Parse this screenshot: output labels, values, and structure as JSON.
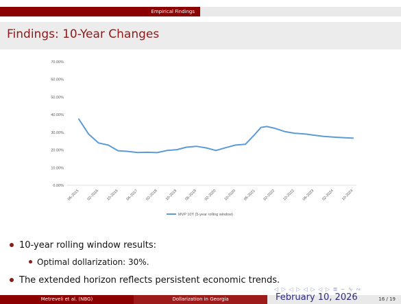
{
  "header": {
    "section": "Empirical Findings"
  },
  "frame": {
    "title": "Findings: 10-Year Changes"
  },
  "bullets": {
    "item1": "10-year rolling window results:",
    "item1_sub": "Optimal dollarization:  30%.",
    "item2": "The extended horizon reflects persistent economic trends."
  },
  "footer": {
    "author": "Metreveli et al. (NBG)",
    "short_title": "Dollarization in Georgia",
    "date": "February 10, 2026",
    "page": "16 / 19"
  },
  "nav_symbols": "◁ ▷ ◁ ▷ ◁ ▷ ◁ ▷ ≣ ∽ ∿ ∾",
  "colors": {
    "header_red": "#8b0000",
    "title_red": "#8b1a1a",
    "line_blue": "#5b9bd5"
  },
  "chart_data": {
    "type": "line",
    "ylim": [
      0,
      70
    ],
    "yticks": [
      0,
      10,
      20,
      30,
      40,
      50,
      60,
      70
    ],
    "yticklabels": [
      "0.00%",
      "10.00%",
      "20.00%",
      "30.00%",
      "40.00%",
      "50.00%",
      "60.00%",
      "70.00%"
    ],
    "xticklabels": [
      "06-2015",
      "02-2016",
      "10-2016",
      "06-2017",
      "02-2018",
      "10-2018",
      "06-2019",
      "02-2020",
      "10-2020",
      "06-2021",
      "02-2022",
      "10-2022",
      "06-2023",
      "02-2024",
      "10-2024"
    ],
    "grid": false,
    "legend_position": "bottom",
    "series": [
      {
        "name": "MVP 10Y (5-year rolling window)",
        "x": [
          0,
          0.5,
          1,
          1.5,
          2,
          2.5,
          3,
          3.5,
          4,
          4.5,
          5,
          5.5,
          6,
          6.5,
          7,
          7.5,
          8,
          8.5,
          9,
          9.3,
          9.6,
          10,
          10.5,
          11,
          11.3,
          11.6,
          12,
          12.5,
          13,
          13.5,
          14
        ],
        "values": [
          37.5,
          29.0,
          24.0,
          22.8,
          19.6,
          19.2,
          18.6,
          18.7,
          18.5,
          19.7,
          20.2,
          21.6,
          22.1,
          21.2,
          19.7,
          21.3,
          22.8,
          23.2,
          29.0,
          32.8,
          33.3,
          32.3,
          30.5,
          29.5,
          29.3,
          29.0,
          28.4,
          27.7,
          27.3,
          27.0,
          26.7
        ]
      }
    ]
  }
}
